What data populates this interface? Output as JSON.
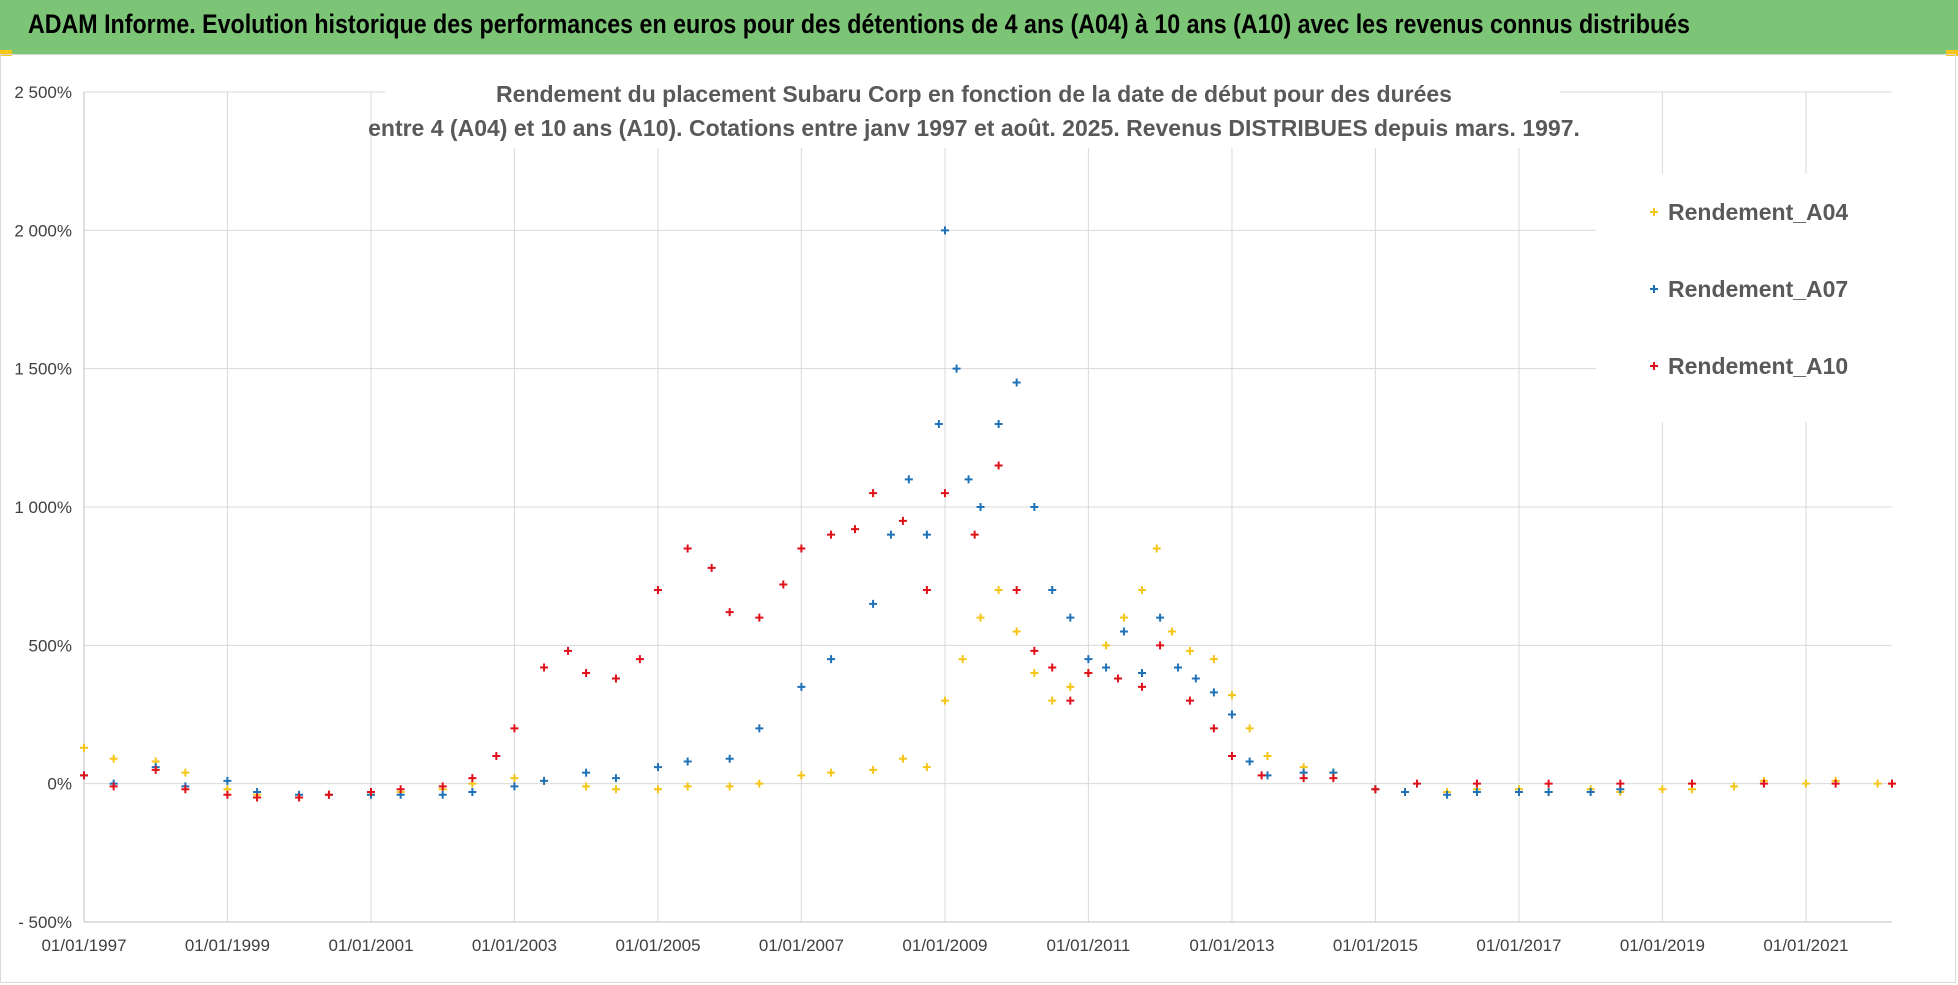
{
  "banner": {
    "text": "ADAM Informe. Evolution historique des performances en euros pour des détentions de 4 ans (A04) à 10 ans (A10) avec les revenus connus distribués"
  },
  "chart_data": {
    "type": "scatter",
    "title_lines": [
      "Rendement du placement Subaru Corp en fonction de la date de début pour des durées",
      "entre 4 (A04) et 10 ans (A10). Cotations entre janv 1997 et août. 2025. Revenus DISTRIBUES depuis mars. 1997."
    ],
    "xlabel": "",
    "ylabel": "",
    "x_range": [
      "1997-01-01",
      "2022-03-15"
    ],
    "ylim": [
      -500,
      2500
    ],
    "y_ticks": [
      -500,
      0,
      500,
      1000,
      1500,
      2000,
      2500
    ],
    "y_tick_labels": [
      "- 500%",
      "0%",
      "500%",
      "1 000%",
      "1 500%",
      "2 000%",
      "2 500%"
    ],
    "x_tick_labels": [
      "01/01/1997",
      "01/01/1999",
      "01/01/2001",
      "01/01/2003",
      "01/01/2005",
      "01/01/2007",
      "01/01/2009",
      "01/01/2011",
      "01/01/2013",
      "01/01/2015",
      "01/01/2017",
      "01/01/2019",
      "01/01/2021"
    ],
    "grid": true,
    "legend_position": "right",
    "marker": "+",
    "series": [
      {
        "name": "Rendement_A04",
        "color": "#f5c518",
        "x": [
          "1997-01-01",
          "1997-06-01",
          "1998-01-01",
          "1998-06-01",
          "1999-01-01",
          "1999-06-01",
          "2000-01-01",
          "2000-06-01",
          "2001-01-01",
          "2001-06-01",
          "2002-01-01",
          "2002-06-01",
          "2003-01-01",
          "2003-06-01",
          "2004-01-01",
          "2004-06-01",
          "2005-01-01",
          "2005-06-01",
          "2006-01-01",
          "2006-06-01",
          "2007-01-01",
          "2007-06-01",
          "2008-01-01",
          "2008-06-01",
          "2008-10-01",
          "2009-01-01",
          "2009-04-01",
          "2009-07-01",
          "2009-10-01",
          "2010-01-01",
          "2010-04-01",
          "2010-07-01",
          "2010-10-01",
          "2011-01-01",
          "2011-04-01",
          "2011-07-01",
          "2011-10-01",
          "2011-12-15",
          "2012-03-01",
          "2012-06-01",
          "2012-10-01",
          "2013-01-01",
          "2013-04-01",
          "2013-07-01",
          "2014-01-01",
          "2014-06-01",
          "2015-01-01",
          "2015-06-01",
          "2016-01-01",
          "2016-06-01",
          "2017-01-01",
          "2017-06-01",
          "2018-01-01",
          "2018-06-01",
          "2019-01-01",
          "2019-06-01",
          "2020-01-01",
          "2020-06-01",
          "2021-01-01",
          "2021-06-01",
          "2022-01-01",
          "2022-03-15"
        ],
        "y": [
          130,
          90,
          80,
          40,
          -20,
          -40,
          -50,
          -40,
          -40,
          -30,
          -20,
          0,
          20,
          10,
          -10,
          -20,
          -20,
          -10,
          -10,
          0,
          30,
          40,
          50,
          90,
          60,
          300,
          450,
          600,
          700,
          550,
          400,
          300,
          350,
          400,
          500,
          600,
          700,
          850,
          550,
          480,
          450,
          320,
          200,
          100,
          60,
          40,
          -20,
          -30,
          -30,
          -20,
          -20,
          -30,
          -20,
          -30,
          -20,
          -20,
          -10,
          10,
          0,
          10,
          0,
          0
        ]
      },
      {
        "name": "Rendement_A07",
        "color": "#1f72b8",
        "x": [
          "1997-01-01",
          "1997-06-01",
          "1998-01-01",
          "1998-06-01",
          "1999-01-01",
          "1999-06-01",
          "2000-01-01",
          "2000-06-01",
          "2001-01-01",
          "2001-06-01",
          "2002-01-01",
          "2002-06-01",
          "2003-01-01",
          "2003-06-01",
          "2004-01-01",
          "2004-06-01",
          "2005-01-01",
          "2005-06-01",
          "2006-01-01",
          "2006-06-01",
          "2007-01-01",
          "2007-06-01",
          "2008-01-01",
          "2008-04-01",
          "2008-07-01",
          "2008-10-01",
          "2008-12-01",
          "2009-01-01",
          "2009-03-01",
          "2009-05-01",
          "2009-07-01",
          "2009-10-01",
          "2010-01-01",
          "2010-04-01",
          "2010-07-01",
          "2010-10-01",
          "2011-01-01",
          "2011-04-01",
          "2011-07-01",
          "2011-10-01",
          "2012-01-01",
          "2012-04-01",
          "2012-07-01",
          "2012-10-01",
          "2013-01-01",
          "2013-04-01",
          "2013-07-01",
          "2014-01-01",
          "2014-06-01",
          "2015-01-01",
          "2015-06-01",
          "2016-01-01",
          "2016-06-01",
          "2017-01-01",
          "2017-06-01",
          "2018-01-01",
          "2018-06-01"
        ],
        "y": [
          30,
          0,
          60,
          -10,
          10,
          -30,
          -40,
          -40,
          -40,
          -40,
          -40,
          -30,
          -10,
          10,
          40,
          20,
          60,
          80,
          90,
          200,
          350,
          450,
          650,
          900,
          1100,
          900,
          1300,
          2000,
          1500,
          1100,
          1000,
          1300,
          1450,
          1000,
          700,
          600,
          450,
          420,
          550,
          400,
          600,
          420,
          380,
          330,
          250,
          80,
          30,
          40,
          40,
          -20,
          -30,
          -40,
          -30,
          -30,
          -30,
          -30,
          -20
        ]
      },
      {
        "name": "Rendement_A10",
        "color": "#e0101a",
        "x": [
          "1997-01-01",
          "1997-06-01",
          "1998-01-01",
          "1998-06-01",
          "1999-01-01",
          "1999-06-01",
          "2000-01-01",
          "2000-06-01",
          "2001-01-01",
          "2001-06-01",
          "2002-01-01",
          "2002-06-01",
          "2002-10-01",
          "2003-01-01",
          "2003-06-01",
          "2003-10-01",
          "2004-01-01",
          "2004-06-01",
          "2004-10-01",
          "2005-01-01",
          "2005-06-01",
          "2005-10-01",
          "2006-01-01",
          "2006-06-01",
          "2006-10-01",
          "2007-01-01",
          "2007-06-01",
          "2007-10-01",
          "2008-01-01",
          "2008-06-01",
          "2008-10-01",
          "2009-01-01",
          "2009-06-01",
          "2009-10-01",
          "2010-01-01",
          "2010-04-01",
          "2010-07-01",
          "2010-10-01",
          "2011-01-01",
          "2011-06-01",
          "2011-10-01",
          "2012-01-01",
          "2012-06-01",
          "2012-10-01",
          "2013-01-01",
          "2013-06-01",
          "2014-01-01",
          "2014-06-01",
          "2015-01-01",
          "2015-08-01",
          "2016-06-01",
          "2017-06-01",
          "2018-06-01",
          "2019-06-01",
          "2020-06-01",
          "2021-06-01",
          "2022-03-15"
        ],
        "y": [
          30,
          -10,
          50,
          -20,
          -40,
          -50,
          -50,
          -40,
          -30,
          -20,
          -10,
          20,
          100,
          200,
          420,
          480,
          400,
          380,
          450,
          700,
          850,
          780,
          620,
          600,
          720,
          850,
          900,
          920,
          1050,
          950,
          700,
          1050,
          900,
          1150,
          700,
          480,
          420,
          300,
          400,
          380,
          350,
          500,
          300,
          200,
          100,
          30,
          20,
          20,
          -20,
          0,
          0,
          0,
          0,
          0,
          0,
          0,
          0
        ]
      }
    ]
  }
}
